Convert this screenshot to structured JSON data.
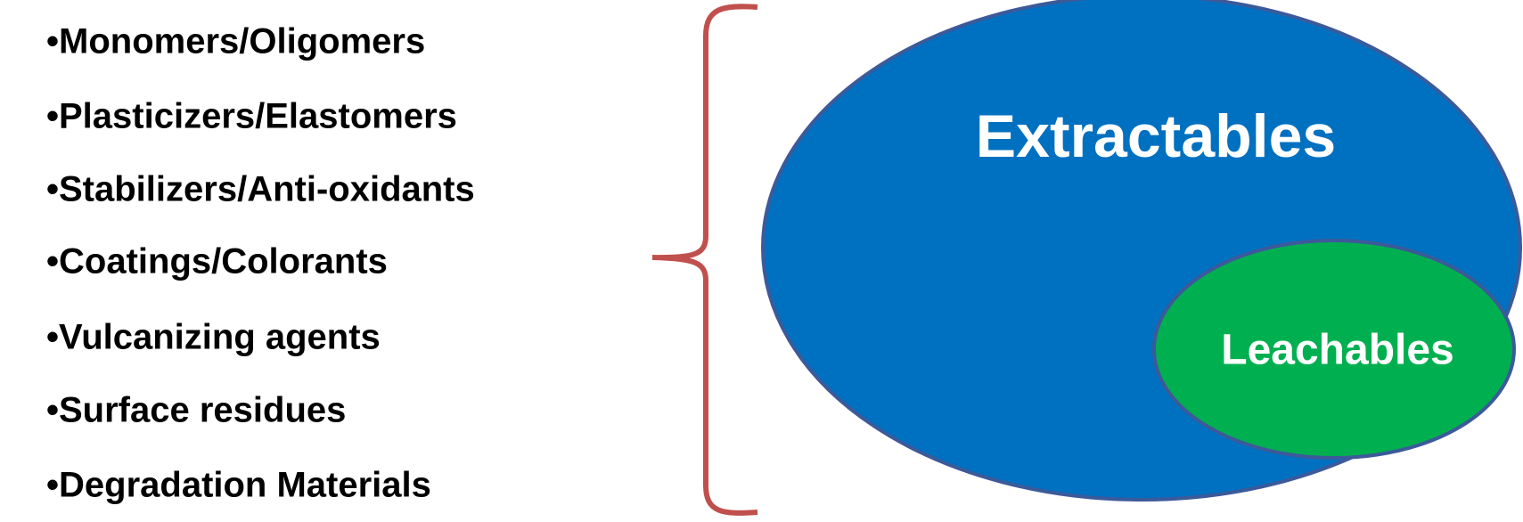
{
  "list": {
    "items": [
      "•Monomers/Oligomers",
      "•Plasticizers/Elastomers",
      "•Stabilizers/Anti-oxidants",
      "•Coatings/Colorants",
      "•Vulcanizing agents",
      "•Surface residues",
      "•Degradation Materials"
    ]
  },
  "diagram": {
    "outer": {
      "label": "Extractables"
    },
    "inner": {
      "label": "Leachables"
    }
  }
}
